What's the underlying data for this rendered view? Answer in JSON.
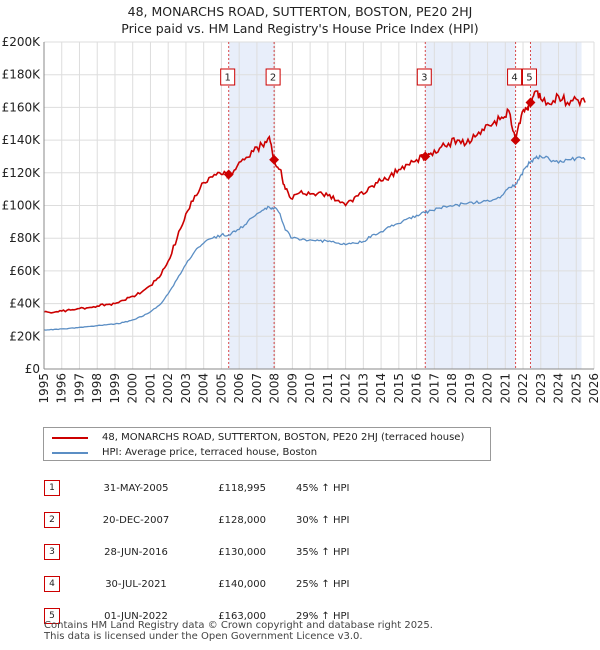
{
  "title_line1": "48, MONARCHS ROAD, SUTTERTON, BOSTON, PE20 2HJ",
  "title_line2": "Price paid vs. HM Land Registry's House Price Index (HPI)",
  "colors": {
    "property": "#cc0000",
    "hpi": "#5b8ec4",
    "shade": "#e8eefa",
    "grid": "#dddddd"
  },
  "chart_data": {
    "type": "line",
    "xlim": [
      1995,
      2026
    ],
    "ylim": [
      0,
      200000
    ],
    "y_ticks": [
      {
        "value": 0,
        "label": "£0"
      },
      {
        "value": 20000,
        "label": "£20K"
      },
      {
        "value": 40000,
        "label": "£40K"
      },
      {
        "value": 60000,
        "label": "£60K"
      },
      {
        "value": 80000,
        "label": "£80K"
      },
      {
        "value": 100000,
        "label": "£100K"
      },
      {
        "value": 120000,
        "label": "£120K"
      },
      {
        "value": 140000,
        "label": "£140K"
      },
      {
        "value": 160000,
        "label": "£160K"
      },
      {
        "value": 180000,
        "label": "£180K"
      },
      {
        "value": 200000,
        "label": "£200K"
      }
    ],
    "x_ticks": [
      "1995",
      "1996",
      "1997",
      "1998",
      "1999",
      "2000",
      "2001",
      "2002",
      "2003",
      "2004",
      "2005",
      "2006",
      "2007",
      "2008",
      "2009",
      "2010",
      "2011",
      "2012",
      "2013",
      "2014",
      "2015",
      "2016",
      "2017",
      "2018",
      "2019",
      "2020",
      "2021",
      "2022",
      "2023",
      "2024",
      "2025",
      "2026"
    ],
    "shaded_ranges": [
      [
        2005.41,
        2007.97
      ],
      [
        2016.49,
        2021.58
      ],
      [
        2022.42,
        2025.3
      ]
    ],
    "series": [
      {
        "name": "48, MONARCHS ROAD, SUTTERTON, BOSTON, PE20 2HJ (terraced house)",
        "x": [
          1995.0,
          1995.5,
          1996.0,
          1996.5,
          1997.0,
          1997.5,
          1998.0,
          1998.5,
          1999.0,
          1999.5,
          2000.0,
          2000.5,
          2001.0,
          2001.5,
          2002.0,
          2002.5,
          2003.0,
          2003.5,
          2004.0,
          2004.5,
          2005.0,
          2005.41,
          2005.8,
          2006.3,
          2006.8,
          2007.3,
          2007.7,
          2007.97,
          2008.3,
          2008.6,
          2009.0,
          2009.5,
          2010.0,
          2010.5,
          2011.0,
          2011.5,
          2012.0,
          2012.5,
          2013.0,
          2013.5,
          2014.0,
          2014.5,
          2015.0,
          2015.5,
          2016.0,
          2016.49,
          2016.8,
          2017.3,
          2017.8,
          2018.3,
          2018.8,
          2019.3,
          2019.8,
          2020.3,
          2020.8,
          2021.2,
          2021.58,
          2021.9,
          2022.2,
          2022.42,
          2022.7,
          2023.0,
          2023.5,
          2024.0,
          2024.5,
          2025.0,
          2025.5
        ],
        "values": [
          35000,
          34500,
          35500,
          36000,
          37000,
          37500,
          38500,
          39500,
          40000,
          42000,
          44500,
          47000,
          51000,
          56000,
          66000,
          80000,
          95000,
          106000,
          114000,
          117500,
          119000,
          118995,
          122000,
          128000,
          133000,
          137000,
          142000,
          128000,
          122000,
          110000,
          104000,
          109000,
          107000,
          108000,
          106000,
          103000,
          100000,
          105000,
          107000,
          112000,
          115000,
          118000,
          122000,
          125000,
          128000,
          130000,
          132000,
          135000,
          138000,
          140000,
          138000,
          142000,
          146000,
          150000,
          154000,
          158000,
          140000,
          155000,
          159000,
          163000,
          170000,
          165000,
          162000,
          167000,
          163000,
          165000,
          163000
        ]
      },
      {
        "name": "HPI: Average price, terraced house, Boston",
        "x": [
          1995.0,
          1995.5,
          1996.0,
          1996.5,
          1997.0,
          1997.5,
          1998.0,
          1998.5,
          1999.0,
          1999.5,
          2000.0,
          2000.5,
          2001.0,
          2001.5,
          2002.0,
          2002.5,
          2003.0,
          2003.5,
          2004.0,
          2004.5,
          2005.0,
          2005.41,
          2005.8,
          2006.3,
          2006.8,
          2007.3,
          2007.7,
          2007.97,
          2008.3,
          2008.6,
          2009.0,
          2009.5,
          2010.0,
          2010.5,
          2011.0,
          2011.5,
          2012.0,
          2012.5,
          2013.0,
          2013.5,
          2014.0,
          2014.5,
          2015.0,
          2015.5,
          2016.0,
          2016.49,
          2016.8,
          2017.3,
          2017.8,
          2018.3,
          2018.8,
          2019.3,
          2019.8,
          2020.3,
          2020.8,
          2021.2,
          2021.58,
          2021.9,
          2022.2,
          2022.42,
          2022.7,
          2023.0,
          2023.5,
          2024.0,
          2024.5,
          2025.0,
          2025.5
        ],
        "values": [
          24000,
          24000,
          24500,
          25000,
          25500,
          26000,
          26500,
          27000,
          27500,
          28500,
          30000,
          32000,
          35000,
          39000,
          46000,
          55000,
          64000,
          72000,
          77000,
          80000,
          82000,
          82000,
          84000,
          88000,
          93000,
          97000,
          99000,
          98500,
          95000,
          85000,
          80000,
          79000,
          79000,
          78500,
          78000,
          77000,
          76000,
          77000,
          78000,
          82000,
          84000,
          87000,
          89000,
          92000,
          94000,
          95500,
          97000,
          98500,
          99500,
          100500,
          101000,
          101500,
          103000,
          103500,
          106000,
          111000,
          113000,
          119000,
          124000,
          126500,
          129000,
          130000,
          128000,
          126000,
          128000,
          129000,
          128000
        ]
      }
    ],
    "sales": [
      {
        "n": "1",
        "x": 2005.41,
        "value": 118995
      },
      {
        "n": "2",
        "x": 2007.97,
        "value": 128000
      },
      {
        "n": "3",
        "x": 2016.49,
        "value": 130000
      },
      {
        "n": "4",
        "x": 2021.58,
        "value": 140000
      },
      {
        "n": "5",
        "x": 2022.42,
        "value": 163000
      }
    ]
  },
  "legend": {
    "property": "48, MONARCHS ROAD, SUTTERTON, BOSTON, PE20 2HJ (terraced house)",
    "hpi": "HPI: Average price, terraced house, Boston"
  },
  "table": [
    {
      "n": "1",
      "date": "31-MAY-2005",
      "price": "£118,995",
      "hpi": "45% ↑ HPI"
    },
    {
      "n": "2",
      "date": "20-DEC-2007",
      "price": "£128,000",
      "hpi": "30% ↑ HPI"
    },
    {
      "n": "3",
      "date": "28-JUN-2016",
      "price": "£130,000",
      "hpi": "35% ↑ HPI"
    },
    {
      "n": "4",
      "date": "30-JUL-2021",
      "price": "£140,000",
      "hpi": "25% ↑ HPI"
    },
    {
      "n": "5",
      "date": "01-JUN-2022",
      "price": "£163,000",
      "hpi": "29% ↑ HPI"
    }
  ],
  "footer": {
    "line1": "Contains HM Land Registry data © Crown copyright and database right 2025.",
    "line2": "This data is licensed under the Open Government Licence v3.0."
  }
}
